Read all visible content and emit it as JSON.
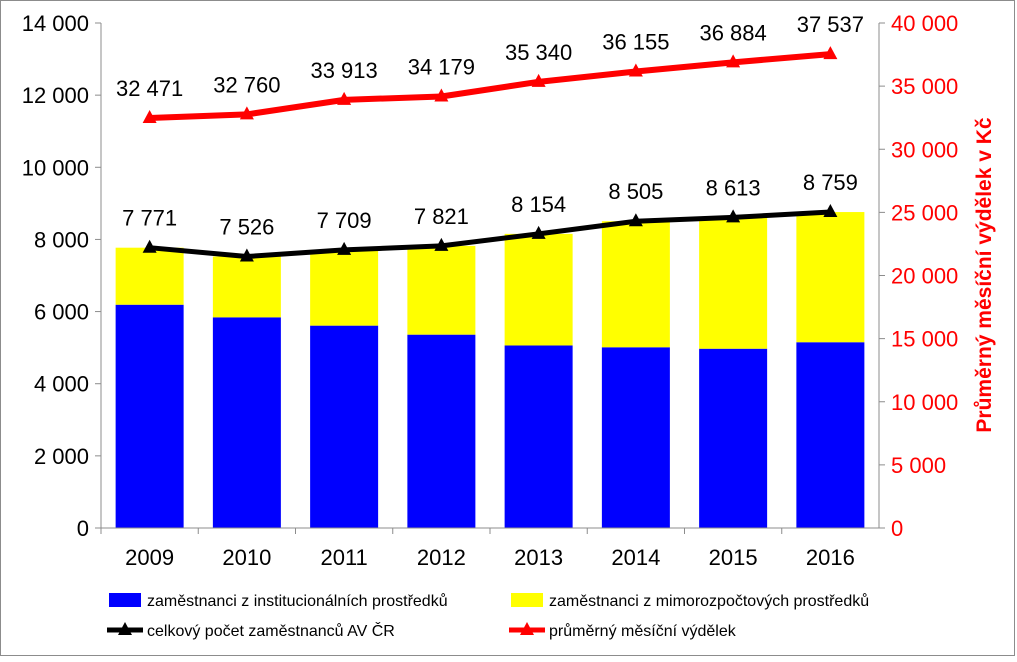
{
  "chart_data": {
    "type": "bar",
    "stacked": true,
    "categories": [
      "2009",
      "2010",
      "2011",
      "2012",
      "2013",
      "2014",
      "2015",
      "2016"
    ],
    "series": [
      {
        "name": "zaměstnanci z institucionálních prostředků",
        "kind": "bar",
        "axis": "left",
        "color": "#0000ff",
        "values": [
          6190,
          5840,
          5610,
          5360,
          5060,
          5010,
          4970,
          5150
        ]
      },
      {
        "name": "zaměstnanci z mimorozpočtových prostředků",
        "kind": "bar",
        "axis": "left",
        "color": "#ffff00",
        "values": [
          1581,
          1686,
          2099,
          2461,
          3094,
          3495,
          3643,
          3609
        ]
      },
      {
        "name": "celkový počet zaměstnanců AV ČR",
        "kind": "line",
        "axis": "left",
        "color": "#000000",
        "values": [
          7771,
          7526,
          7709,
          7821,
          8154,
          8505,
          8613,
          8759
        ],
        "labels": [
          "7 771",
          "7 526",
          "7 709",
          "7 821",
          "8 154",
          "8 505",
          "8 613",
          "8 759"
        ]
      },
      {
        "name": "průměrný měsíční výdělek",
        "kind": "line",
        "axis": "right",
        "color": "#ff0000",
        "values": [
          32471,
          32760,
          33913,
          34179,
          35340,
          36155,
          36884,
          37537
        ],
        "labels": [
          "32 471",
          "32 760",
          "33 913",
          "34 179",
          "35 340",
          "36 155",
          "36 884",
          "37 537"
        ]
      }
    ],
    "y_left": {
      "min": 0,
      "max": 14000,
      "step": 2000,
      "ticks": [
        "0",
        "2 000",
        "4 000",
        "6 000",
        "8 000",
        "10 000",
        "12 000",
        "14 000"
      ]
    },
    "y_right": {
      "min": 0,
      "max": 40000,
      "step": 5000,
      "label": "Průměrný měsíční výdělek v Kč",
      "ticks": [
        "0",
        "5 000",
        "10 000",
        "15 000",
        "20 000",
        "25 000",
        "30 000",
        "35 000",
        "40 000"
      ]
    },
    "grid": false,
    "legend_position": "bottom"
  }
}
